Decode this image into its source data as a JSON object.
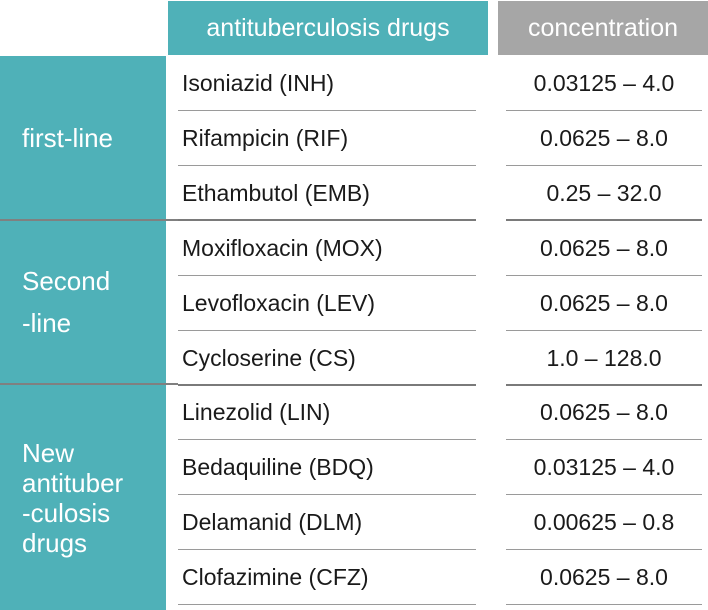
{
  "header": {
    "drugs_label": "antituberculosis drugs",
    "concentration_label": "concentration"
  },
  "groups": [
    {
      "label": "first-line"
    },
    {
      "label_line1": "Second",
      "label_line2": "-line"
    },
    {
      "label_line1": "New",
      "label_line2": "antituber",
      "label_line3": "-culosis",
      "label_line4": "drugs"
    }
  ],
  "rows": [
    {
      "drug": "Isoniazid (INH)",
      "concentration": "0.03125 – 4.0"
    },
    {
      "drug": "Rifampicin (RIF)",
      "concentration": "0.0625 – 8.0"
    },
    {
      "drug": "Ethambutol (EMB)",
      "concentration": "0.25 – 32.0"
    },
    {
      "drug": "Moxifloxacin (MOX)",
      "concentration": "0.0625 – 8.0"
    },
    {
      "drug": "Levofloxacin (LEV)",
      "concentration": "0.0625 – 8.0"
    },
    {
      "drug": "Cycloserine (CS)",
      "concentration": "1.0 – 128.0"
    },
    {
      "drug": "Linezolid (LIN)",
      "concentration": "0.0625 – 8.0"
    },
    {
      "drug": "Bedaquiline (BDQ)",
      "concentration": "0.03125 – 4.0"
    },
    {
      "drug": "Delamanid (DLM)",
      "concentration": "0.00625 – 0.8"
    },
    {
      "drug": "Clofazimine (CFZ)",
      "concentration": "0.0625 – 8.0"
    }
  ],
  "colors": {
    "teal": "#4fb1b8",
    "gray_header": "#a6a6a6"
  }
}
